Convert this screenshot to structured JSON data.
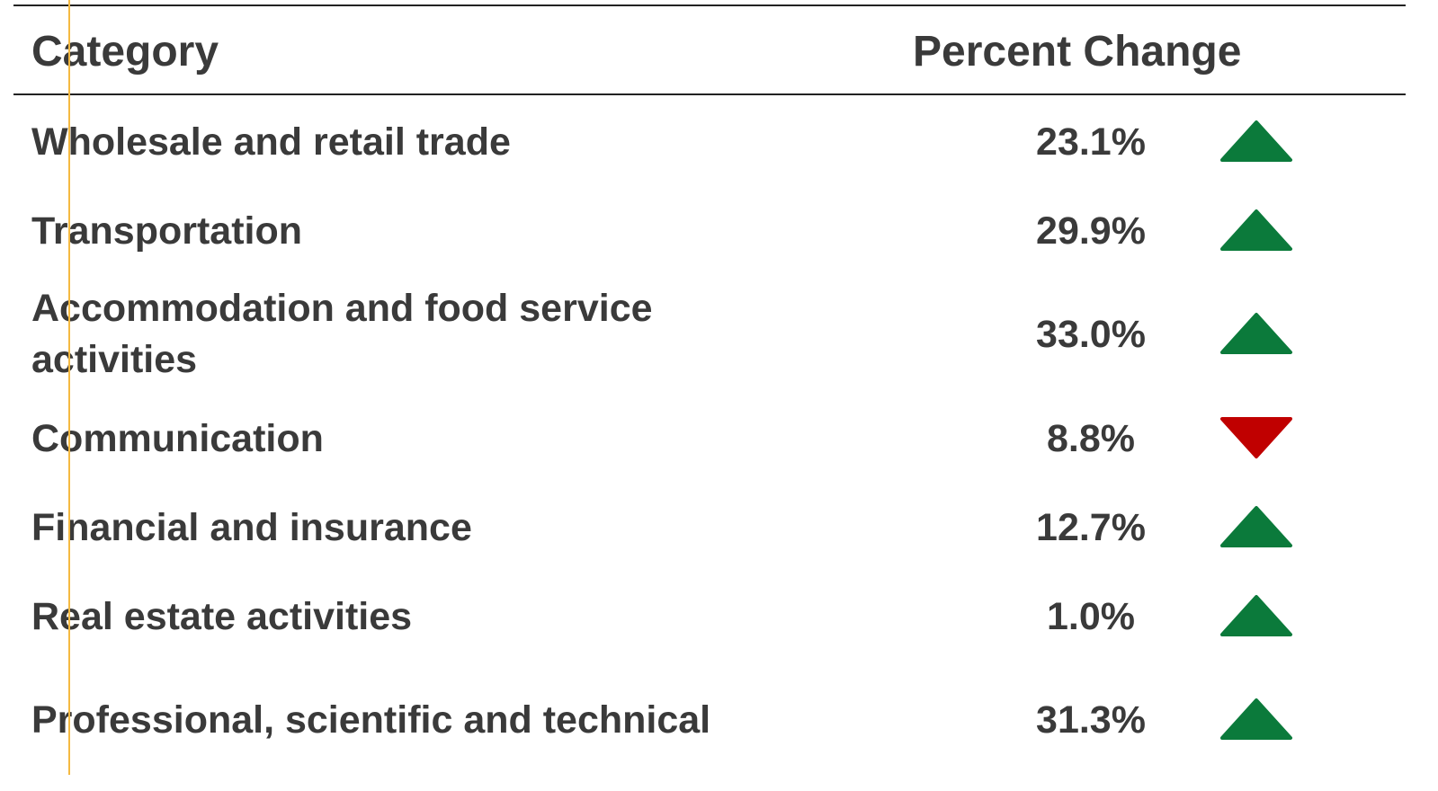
{
  "table": {
    "headers": [
      "Category",
      "Percent Change"
    ],
    "rows": [
      {
        "category": "Wholesale and retail trade",
        "change": "23.1%",
        "trend": "up"
      },
      {
        "category": "Transportation",
        "change": "29.9%",
        "trend": "up"
      },
      {
        "category": "Accommodation and food service activities",
        "change": "33.0%",
        "trend": "up"
      },
      {
        "category": "Communication",
        "change": "8.8%",
        "trend": "down"
      },
      {
        "category": "Financial and insurance",
        "change": "12.7%",
        "trend": "up"
      },
      {
        "category": "Real estate activities",
        "change": "1.0%",
        "trend": "up"
      },
      {
        "category": "Professional, scientific and technical",
        "change": "31.3%",
        "trend": "up"
      }
    ],
    "colors": {
      "up": "#0b7a3b",
      "down": "#c00000"
    }
  }
}
